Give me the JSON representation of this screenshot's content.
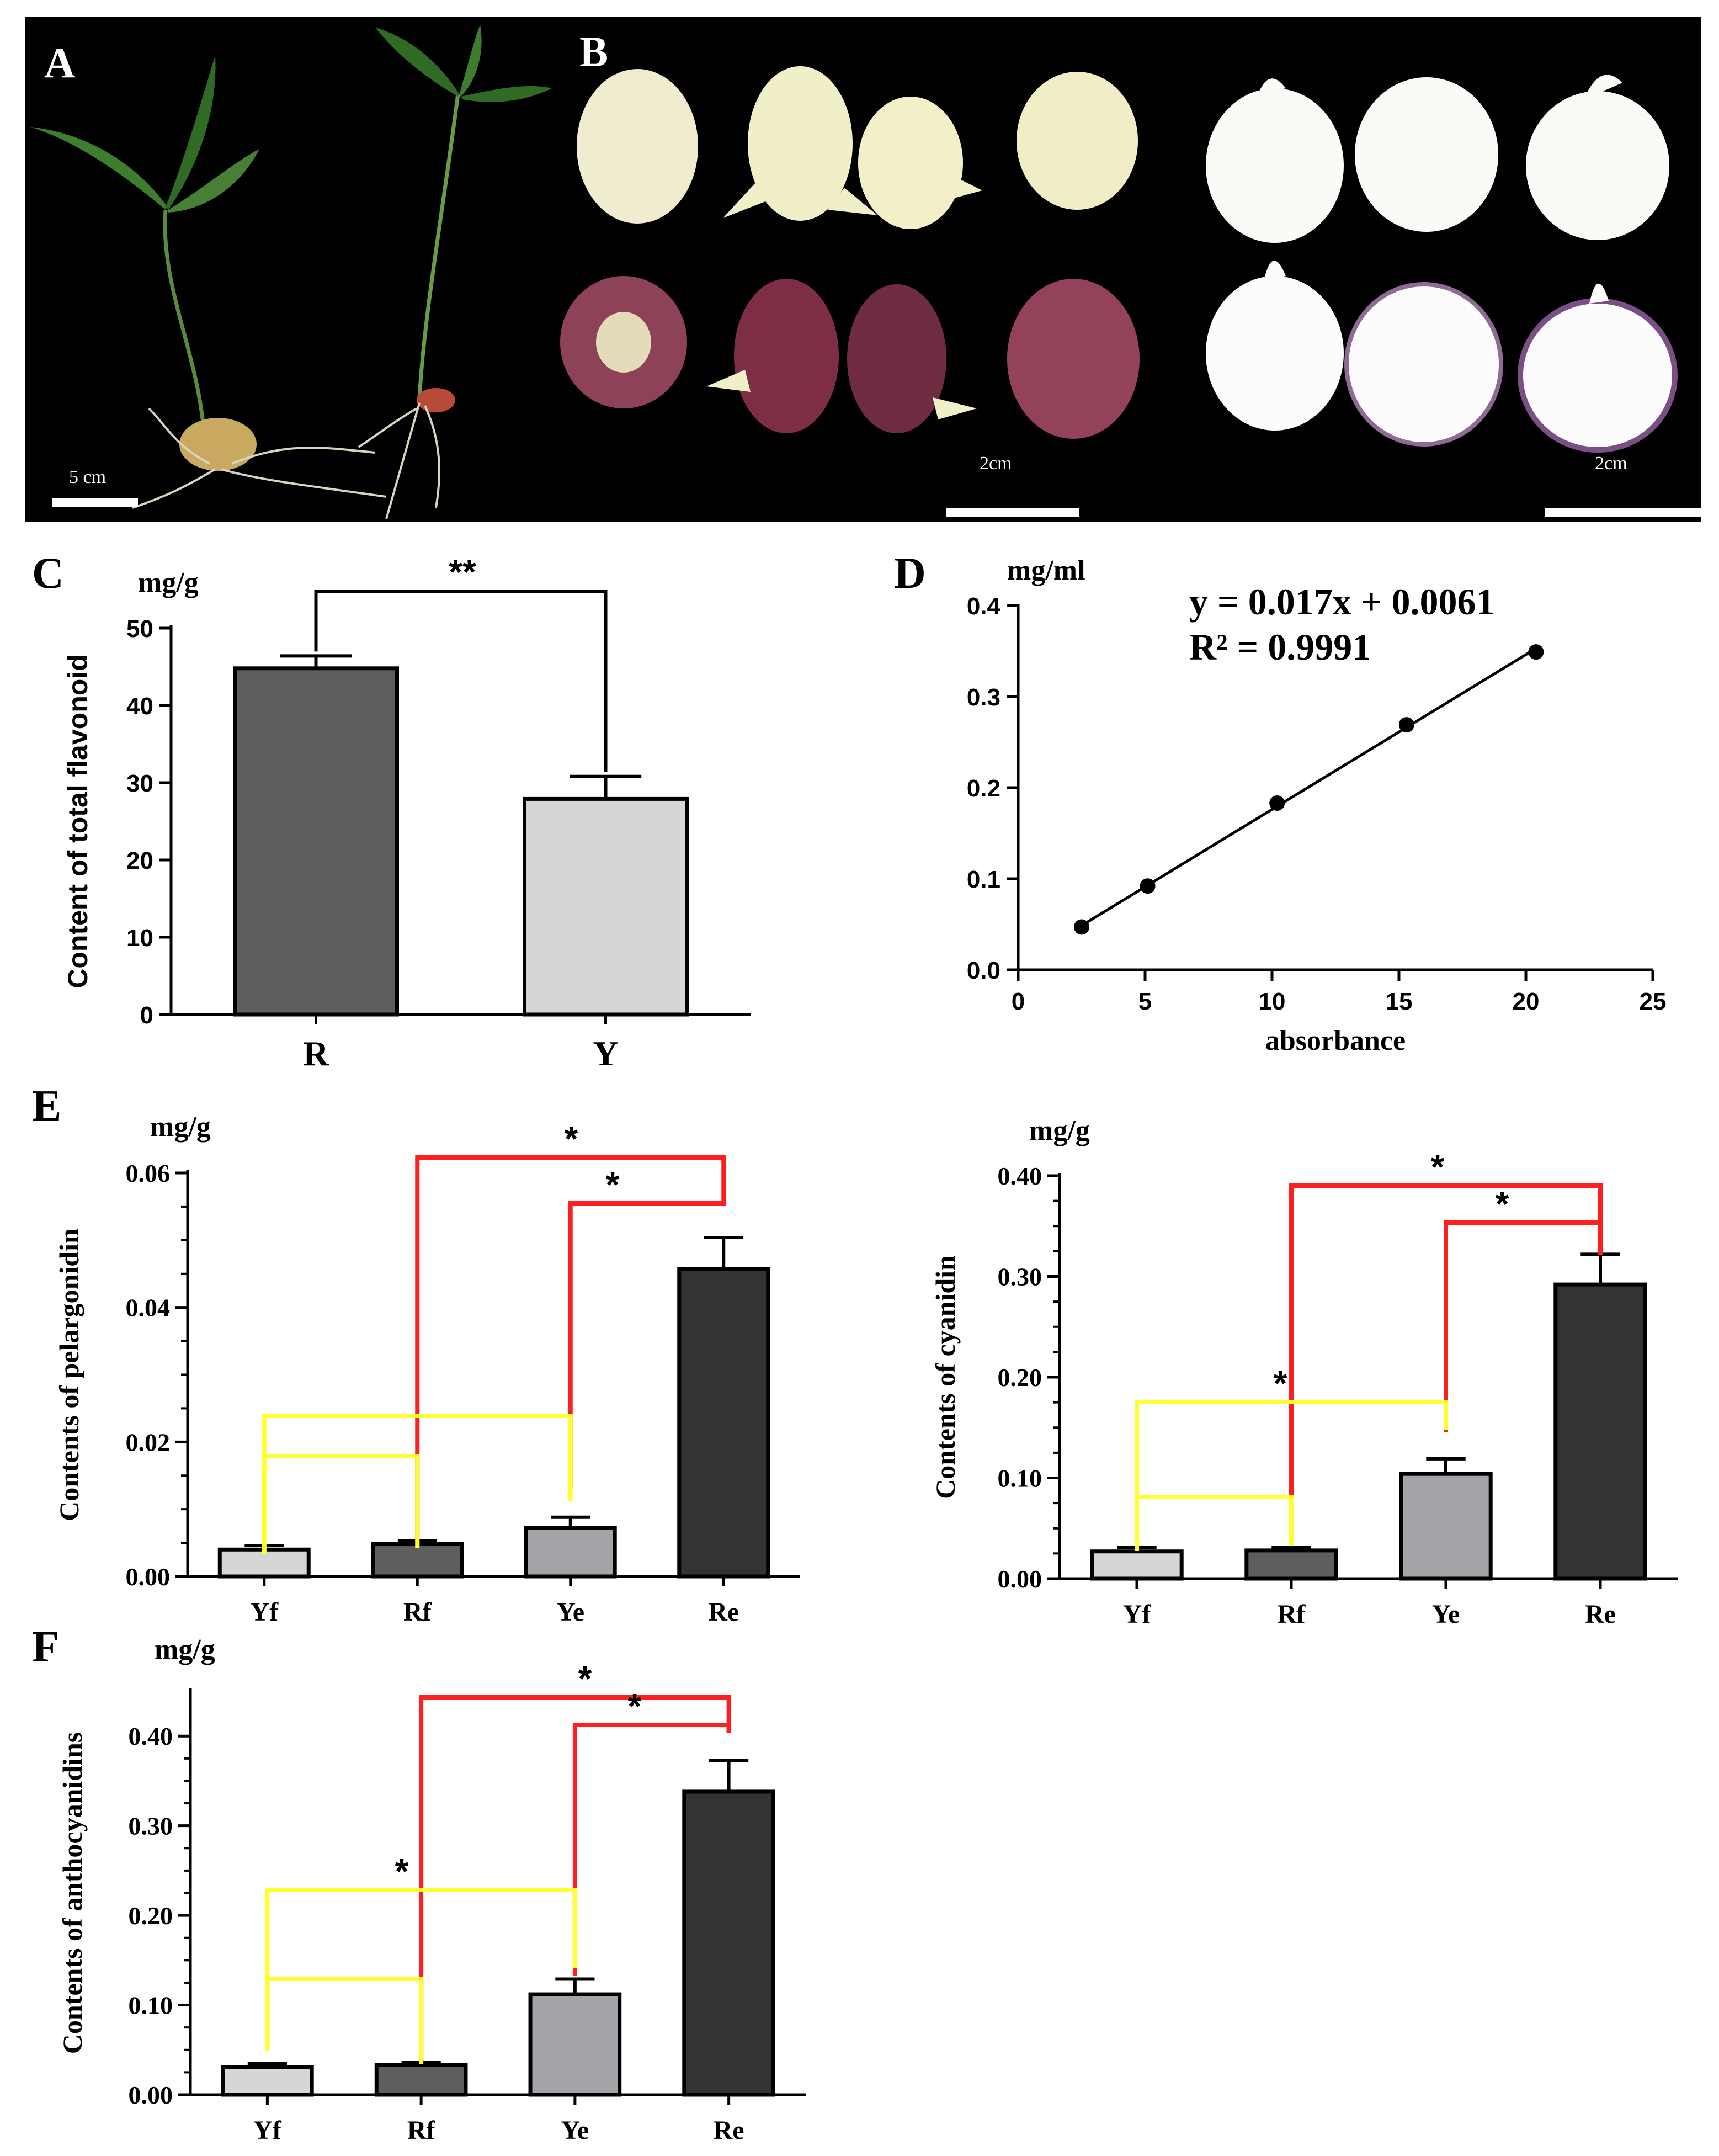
{
  "colors": {
    "light_gray": "#d6d6d6",
    "mid_gray": "#a4a4a8",
    "dark_gray": "#5e5e5e",
    "darkest": "#333333",
    "red": "#ff1f1f",
    "yellow": "#ffff33",
    "leaf_green": "#3f7d2e",
    "tuber_cream": "#efecd0",
    "tuber_red": "#8e4257"
  },
  "panel_a": {
    "label": "A",
    "scale_label": "5 cm",
    "icons": [
      "seedling-yellow-tuber",
      "seedling-red-tuber"
    ]
  },
  "panel_b": {
    "label": "B",
    "scale_left": "2cm",
    "scale_right": "2cm",
    "icons": [
      "whole-tubers",
      "sectioned-tubers"
    ]
  },
  "chart_data": [
    {
      "panel": "C",
      "type": "bar",
      "title": "",
      "unit_label": "mg/g",
      "ylabel": "Content of total flavonoid",
      "xlabel": "",
      "categories": [
        "R",
        "Y"
      ],
      "values": [
        44.8,
        27.9
      ],
      "errors": [
        1.6,
        2.9
      ],
      "bar_colors": [
        "#5e5e5e",
        "#d6d6d6"
      ],
      "ylim": [
        0,
        50
      ],
      "yticks": [
        "0",
        "10",
        "20",
        "30",
        "40",
        "50"
      ],
      "significance": [
        {
          "from": "R",
          "to": "Y",
          "label": "**"
        }
      ]
    },
    {
      "panel": "D",
      "type": "scatter",
      "unit_label": "mg/ml",
      "xlabel": "absorbance",
      "ylabel": "",
      "x": [
        2.5,
        5.1,
        10.2,
        15.3,
        20.4
      ],
      "y": [
        0.047,
        0.092,
        0.183,
        0.269,
        0.349
      ],
      "xlim": [
        0,
        25
      ],
      "ylim": [
        0,
        0.4
      ],
      "xticks": [
        "0",
        "5",
        "10",
        "15",
        "20",
        "25"
      ],
      "yticks": [
        "0.0",
        "0.1",
        "0.2",
        "0.3",
        "0.4"
      ],
      "equation": "y = 0.017x + 0.0061",
      "r_squared": "R² = 0.9991",
      "fit": {
        "slope": 0.017,
        "intercept": 0.0061
      }
    },
    {
      "panel": "E",
      "type": "bar",
      "unit_label": "mg/g",
      "ylabel": "Contents of pelargonidin",
      "categories": [
        "Yf",
        "Rf",
        "Ye",
        "Re"
      ],
      "values": [
        0.004,
        0.0048,
        0.0072,
        0.0457
      ],
      "errors": [
        0.0006,
        0.0005,
        0.0016,
        0.0047
      ],
      "bar_colors": [
        "#d6d6d6",
        "#5e5e5e",
        "#a4a4a8",
        "#333333"
      ],
      "ylim": [
        0,
        0.06
      ],
      "yticks": [
        "0.00",
        "0.02",
        "0.04",
        "0.06"
      ],
      "significance": [
        {
          "from": "Rf",
          "to": "Re",
          "label": "*",
          "color": "red"
        },
        {
          "from": "Ye",
          "to": "Re",
          "label": "*",
          "color": "red"
        },
        {
          "from": "Yf",
          "to": "Ye",
          "label": "",
          "color": "yellow"
        },
        {
          "from": "Yf",
          "to": "Rf",
          "label": "",
          "color": "yellow"
        }
      ]
    },
    {
      "panel": "E-right",
      "type": "bar",
      "unit_label": "mg/g",
      "ylabel": "Contents of cyanidin",
      "categories": [
        "Yf",
        "Rf",
        "Ye",
        "Re"
      ],
      "values": [
        0.027,
        0.028,
        0.104,
        0.292
      ],
      "errors": [
        0.004,
        0.003,
        0.015,
        0.03
      ],
      "bar_colors": [
        "#d6d6d6",
        "#5e5e5e",
        "#a4a4a8",
        "#333333"
      ],
      "ylim": [
        0,
        0.4
      ],
      "yticks": [
        "0.00",
        "0.10",
        "0.20",
        "0.30",
        "0.40"
      ],
      "significance": [
        {
          "from": "Rf",
          "to": "Re",
          "label": "*",
          "color": "red"
        },
        {
          "from": "Ye",
          "to": "Re",
          "label": "*",
          "color": "red"
        },
        {
          "from": "Yf",
          "to": "Ye",
          "label": "*",
          "color": "yellow"
        },
        {
          "from": "Yf",
          "to": "Rf",
          "label": "",
          "color": "yellow"
        }
      ]
    },
    {
      "panel": "F",
      "type": "bar",
      "unit_label": "mg/g",
      "ylabel": "Contents of anthocyanidins",
      "categories": [
        "Yf",
        "Rf",
        "Ye",
        "Re"
      ],
      "values": [
        0.031,
        0.033,
        0.112,
        0.338
      ],
      "errors": [
        0.004,
        0.003,
        0.017,
        0.035
      ],
      "bar_colors": [
        "#d6d6d6",
        "#5e5e5e",
        "#a4a4a8",
        "#333333"
      ],
      "ylim": [
        0,
        0.45
      ],
      "yticks": [
        "0.00",
        "0.10",
        "0.20",
        "0.30",
        "0.40"
      ],
      "significance": [
        {
          "from": "Rf",
          "to": "Re",
          "label": "*",
          "color": "red"
        },
        {
          "from": "Ye",
          "to": "Re",
          "label": "*",
          "color": "red"
        },
        {
          "from": "Yf",
          "to": "Ye",
          "label": "*",
          "color": "yellow"
        },
        {
          "from": "Yf",
          "to": "Rf",
          "label": "",
          "color": "yellow"
        }
      ]
    }
  ]
}
